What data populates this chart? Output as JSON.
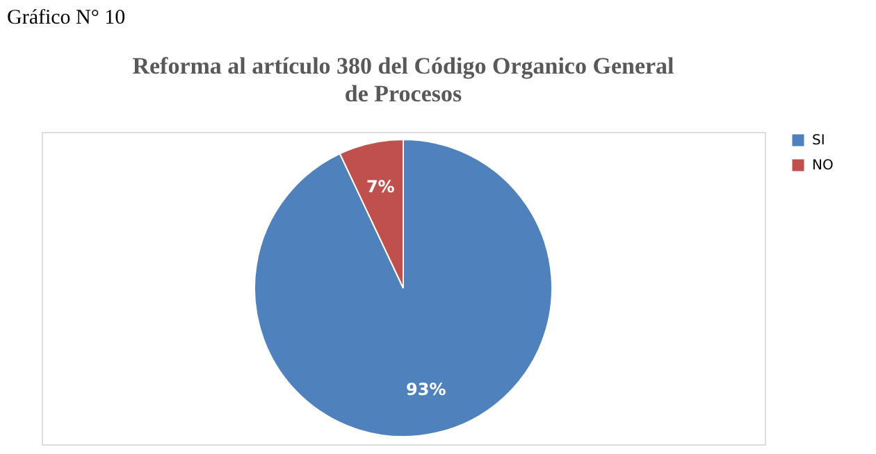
{
  "chart_data": {
    "type": "pie",
    "title": "Reforma al artículo 380 del Código Organico General de Procesos",
    "annotations": [
      "Gráfico N° 10"
    ],
    "categories": [
      "SI",
      "NO"
    ],
    "values": [
      93,
      7
    ],
    "colors": [
      "#4f81bd",
      "#c0504d"
    ],
    "value_labels": [
      "93%",
      "7%"
    ],
    "legend": "right"
  }
}
